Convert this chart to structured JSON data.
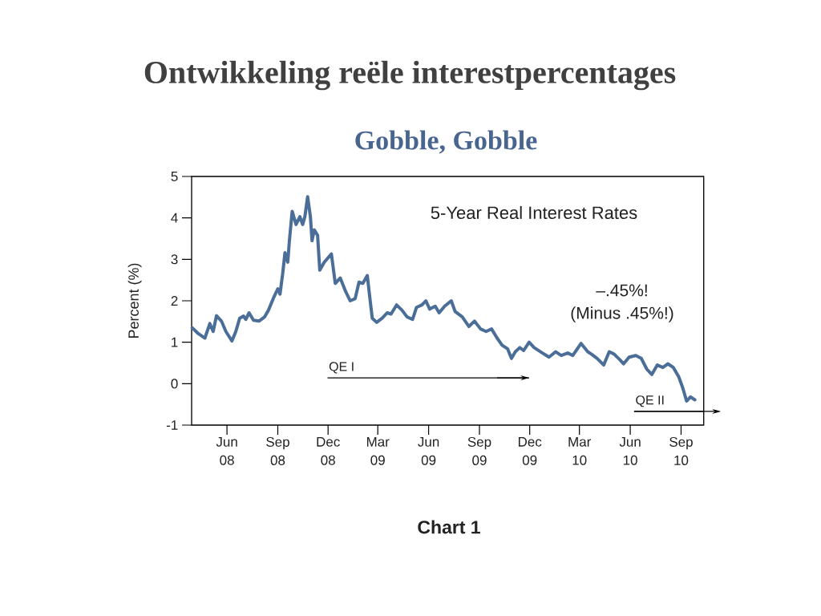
{
  "chart_data": {
    "type": "line",
    "title": "Ontwikkeling reële interestpercentages",
    "subtitle": "Gobble, Gobble",
    "ylabel": "Percent (%)",
    "annotations": [
      "5-Year Real Interest Rates",
      "–.45%!",
      "(Minus .45%!)",
      "Chart 1"
    ],
    "x": [
      "2008-03-30",
      "2008-04-09",
      "2008-04-22",
      "2008-05-01",
      "2008-05-07",
      "2008-05-13",
      "2008-05-22",
      "2008-05-30",
      "2008-06-10",
      "2008-06-17",
      "2008-06-24",
      "2008-07-01",
      "2008-07-05",
      "2008-07-11",
      "2008-07-19",
      "2008-07-29",
      "2008-08-08",
      "2008-08-15",
      "2008-08-25",
      "2008-09-01",
      "2008-09-05",
      "2008-09-10",
      "2008-09-14",
      "2008-09-19",
      "2008-09-22",
      "2008-09-27",
      "2008-10-04",
      "2008-10-11",
      "2008-10-16",
      "2008-10-20",
      "2008-10-25",
      "2008-10-30",
      "2008-11-02",
      "2008-11-06",
      "2008-11-12",
      "2008-11-16",
      "2008-11-24",
      "2008-12-07",
      "2008-12-14",
      "2008-12-23",
      "2009-01-02",
      "2009-01-10",
      "2009-01-19",
      "2009-01-26",
      "2009-02-02",
      "2009-02-10",
      "2009-02-15",
      "2009-02-19",
      "2009-02-27",
      "2009-03-09",
      "2009-03-18",
      "2009-03-25",
      "2009-04-04",
      "2009-04-14",
      "2009-04-23",
      "2009-05-03",
      "2009-05-10",
      "2009-05-20",
      "2009-05-27",
      "2009-06-03",
      "2009-06-13",
      "2009-06-20",
      "2009-06-30",
      "2009-07-12",
      "2009-07-19",
      "2009-08-01",
      "2009-08-13",
      "2009-08-23",
      "2009-09-03",
      "2009-09-13",
      "2009-09-23",
      "2009-10-03",
      "2009-10-12",
      "2009-10-22",
      "2009-10-29",
      "2009-11-05",
      "2009-11-13",
      "2009-11-20",
      "2009-11-30",
      "2009-12-09",
      "2009-12-24",
      "2010-01-05",
      "2010-01-17",
      "2010-01-27",
      "2010-02-08",
      "2010-02-17",
      "2010-03-04",
      "2010-03-16",
      "2010-03-23",
      "2010-04-02",
      "2010-04-14",
      "2010-04-24",
      "2010-05-03",
      "2010-05-13",
      "2010-05-20",
      "2010-05-30",
      "2010-06-11",
      "2010-06-21",
      "2010-07-01",
      "2010-07-10",
      "2010-07-20",
      "2010-07-30",
      "2010-08-08",
      "2010-08-18",
      "2010-08-28",
      "2010-09-04",
      "2010-09-11",
      "2010-09-18",
      "2010-09-26"
    ],
    "series": [
      {
        "color": "#4b6e99",
        "values": [
          1.35,
          1.22,
          1.1,
          1.45,
          1.26,
          1.64,
          1.51,
          1.26,
          1.03,
          1.26,
          1.58,
          1.63,
          1.55,
          1.71,
          1.53,
          1.51,
          1.61,
          1.77,
          2.09,
          2.29,
          2.16,
          2.67,
          3.16,
          2.93,
          3.45,
          4.16,
          3.84,
          4.03,
          3.84,
          4.03,
          4.51,
          4.03,
          3.45,
          3.71,
          3.58,
          2.74,
          2.93,
          3.13,
          2.42,
          2.55,
          2.22,
          2.0,
          2.05,
          2.45,
          2.42,
          2.61,
          2.03,
          1.58,
          1.48,
          1.58,
          1.71,
          1.68,
          1.9,
          1.77,
          1.61,
          1.55,
          1.84,
          1.9,
          2.0,
          1.8,
          1.87,
          1.71,
          1.87,
          2.0,
          1.74,
          1.61,
          1.38,
          1.51,
          1.32,
          1.26,
          1.32,
          1.1,
          0.93,
          0.84,
          0.61,
          0.77,
          0.87,
          0.8,
          1.0,
          0.87,
          0.74,
          0.64,
          0.77,
          0.68,
          0.74,
          0.68,
          0.97,
          0.77,
          0.71,
          0.61,
          0.45,
          0.77,
          0.71,
          0.58,
          0.48,
          0.64,
          0.68,
          0.61,
          0.35,
          0.22,
          0.45,
          0.39,
          0.48,
          0.39,
          0.16,
          -0.1,
          -0.42,
          -0.32,
          -0.39
        ]
      },
      {
        "name": "QE I",
        "color": "#000000",
        "x": [
          "2008-11-30",
          "2009-11-30"
        ],
        "values": [
          0.14,
          0.14
        ]
      },
      {
        "name": "QE II",
        "color": "#000000",
        "x": [
          "2010-06-08",
          "2010-10-12"
        ],
        "values": [
          -0.67,
          -0.67
        ]
      }
    ],
    "xlim": [
      "2008-03-29",
      "2010-10-12"
    ],
    "xticks": [
      {
        "value": "2008-06-01",
        "label": "Jun 08"
      },
      {
        "value": "2008-09-01",
        "label": "Sep 08"
      },
      {
        "value": "2008-12-01",
        "label": "Dec 08"
      },
      {
        "value": "2009-03-01",
        "label": "Mar 09"
      },
      {
        "value": "2009-06-01",
        "label": "Jun 09"
      },
      {
        "value": "2009-09-01",
        "label": "Sep 09"
      },
      {
        "value": "2009-12-01",
        "label": "Dec 09"
      },
      {
        "value": "2010-03-01",
        "label": "Mar 10"
      },
      {
        "value": "2010-06-01",
        "label": "Jun 10"
      },
      {
        "value": "2010-09-01",
        "label": "Sep 10"
      }
    ],
    "ylim": [
      -1,
      5
    ],
    "yticks": [
      -1,
      0,
      1,
      2,
      3,
      4,
      5
    ]
  }
}
